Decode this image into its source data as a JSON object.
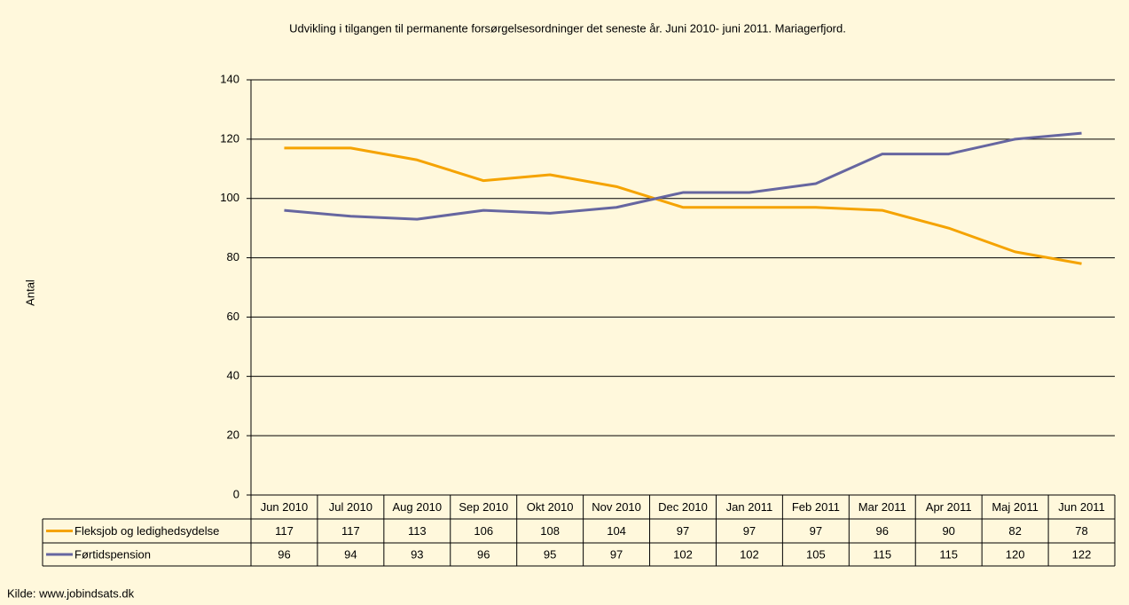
{
  "chart_data": {
    "type": "line",
    "title": "Udvikling i tilgangen til permanente forsørgelsesordninger det seneste år. Juni 2010- juni 2011. Mariagerfjord.",
    "y_label": "Antal",
    "source": "Kilde: www.jobindsats.dk",
    "categories": [
      "Jun 2010",
      "Jul 2010",
      "Aug 2010",
      "Sep 2010",
      "Okt 2010",
      "Nov 2010",
      "Dec 2010",
      "Jan 2011",
      "Feb 2011",
      "Mar 2011",
      "Apr 2011",
      "Maj 2011",
      "Jun 2011"
    ],
    "series": [
      {
        "name": "Fleksjob og ledighedsydelse",
        "color": "#f5a300",
        "values": [
          117,
          117,
          113,
          106,
          108,
          104,
          97,
          97,
          97,
          96,
          90,
          82,
          78
        ]
      },
      {
        "name": "Førtidspension",
        "color": "#6666a0",
        "values": [
          96,
          94,
          93,
          96,
          95,
          97,
          102,
          102,
          105,
          115,
          115,
          120,
          122
        ]
      }
    ],
    "ylim": [
      0,
      140
    ],
    "yticks": [
      0,
      20,
      40,
      60,
      80,
      100,
      120,
      140
    ],
    "grid": true
  }
}
